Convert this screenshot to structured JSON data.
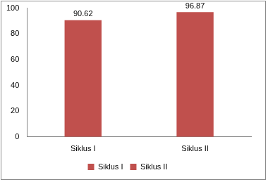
{
  "chart_data": {
    "type": "bar",
    "categories": [
      "Siklus I",
      "Siklus II"
    ],
    "values": [
      90.62,
      96.87
    ],
    "color": "#c0504d",
    "ylim": [
      0,
      100
    ],
    "yticks": [
      0,
      20,
      40,
      60,
      80,
      100
    ],
    "grid": false,
    "data_labels": true,
    "legend": "bottom"
  }
}
